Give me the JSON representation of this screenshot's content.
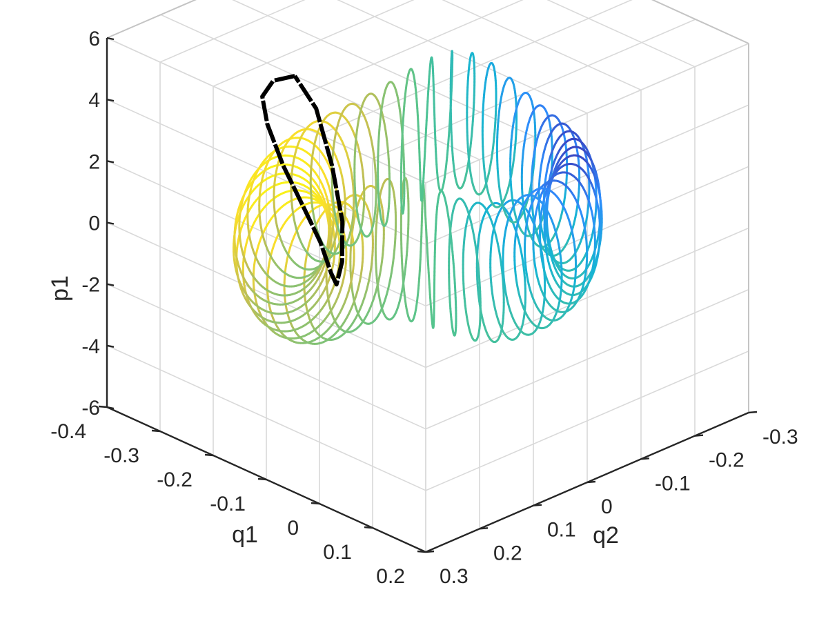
{
  "chart_data": {
    "type": "line",
    "subtype": "3d-parametric-curve",
    "title": "",
    "xlabel": "q1",
    "ylabel": "q2",
    "zlabel": "p1",
    "xlim": [
      -0.4,
      0.2
    ],
    "ylim": [
      -0.3,
      0.3
    ],
    "zlim": [
      -6,
      6
    ],
    "x_ticks": [
      "-0.4",
      "-0.3",
      "-0.2",
      "-0.1",
      "0",
      "0.1",
      "0.2"
    ],
    "y_ticks": [
      "-0.3",
      "-0.2",
      "-0.1",
      "0",
      "0.1",
      "0.2",
      "0.3"
    ],
    "z_ticks": [
      "-6",
      "-4",
      "-2",
      "0",
      "2",
      "4",
      "6"
    ],
    "grid": true,
    "box": false,
    "colormap": "parula",
    "series": [
      {
        "style": "colored-by-parameter",
        "description_colors": [
          "#3e26a8",
          "#2f8cfc",
          "#16b4d4",
          "#53c48f",
          "#c2bf54",
          "#fade2b",
          "#f9fb0e"
        ],
        "torus": {
          "center": [
            -0.1,
            0.0,
            0.0
          ],
          "major_radius": 0.175,
          "minor_radius": 0.045,
          "p_amplitude": 2.2,
          "windings": 46
        }
      },
      {
        "style": "solid",
        "color": "#000000",
        "description": "highlighted periodic orbit",
        "points": [
          [
            -0.33,
            0.02,
            3.2
          ],
          [
            -0.32,
            0.07,
            3.5
          ],
          [
            -0.29,
            0.12,
            3.6
          ],
          [
            -0.24,
            0.16,
            3.4
          ],
          [
            -0.19,
            0.18,
            2.6
          ],
          [
            -0.15,
            0.18,
            1.5
          ],
          [
            -0.13,
            0.17,
            0.5
          ],
          [
            -0.12,
            0.16,
            -0.5
          ],
          [
            -0.13,
            0.14,
            -1.1
          ],
          [
            -0.16,
            0.1,
            -0.9
          ],
          [
            -0.2,
            0.06,
            -0.2
          ],
          [
            -0.25,
            0.03,
            1.0
          ],
          [
            -0.3,
            0.01,
            2.3
          ],
          [
            -0.33,
            0.02,
            3.2
          ]
        ]
      }
    ]
  }
}
